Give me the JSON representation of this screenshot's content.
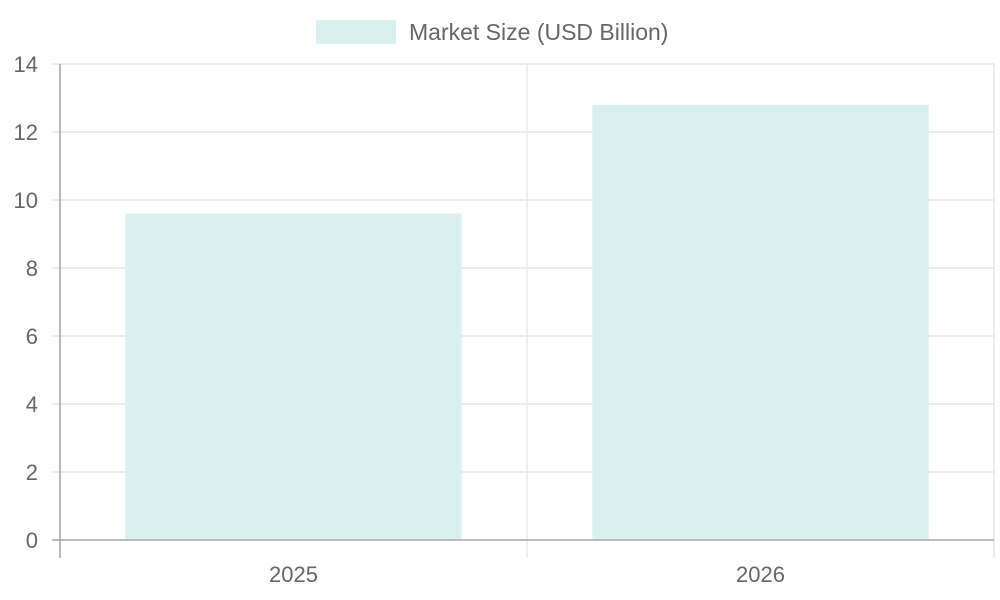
{
  "chart_data": {
    "type": "bar",
    "categories": [
      "2025",
      "2026"
    ],
    "series": [
      {
        "name": "Market Size (USD Billion)",
        "values": [
          9.6,
          12.8
        ],
        "color": "#d9f0f1"
      }
    ],
    "title": "",
    "xlabel": "",
    "ylabel": "",
    "ylim": [
      0,
      14
    ],
    "yticks": [
      0,
      2,
      4,
      6,
      8,
      10,
      12,
      14
    ],
    "grid": true,
    "legend_position": "top-center",
    "colors": {
      "grid": "#e1e1e1",
      "axis": "#a8a8a8",
      "text": "#666666"
    }
  }
}
